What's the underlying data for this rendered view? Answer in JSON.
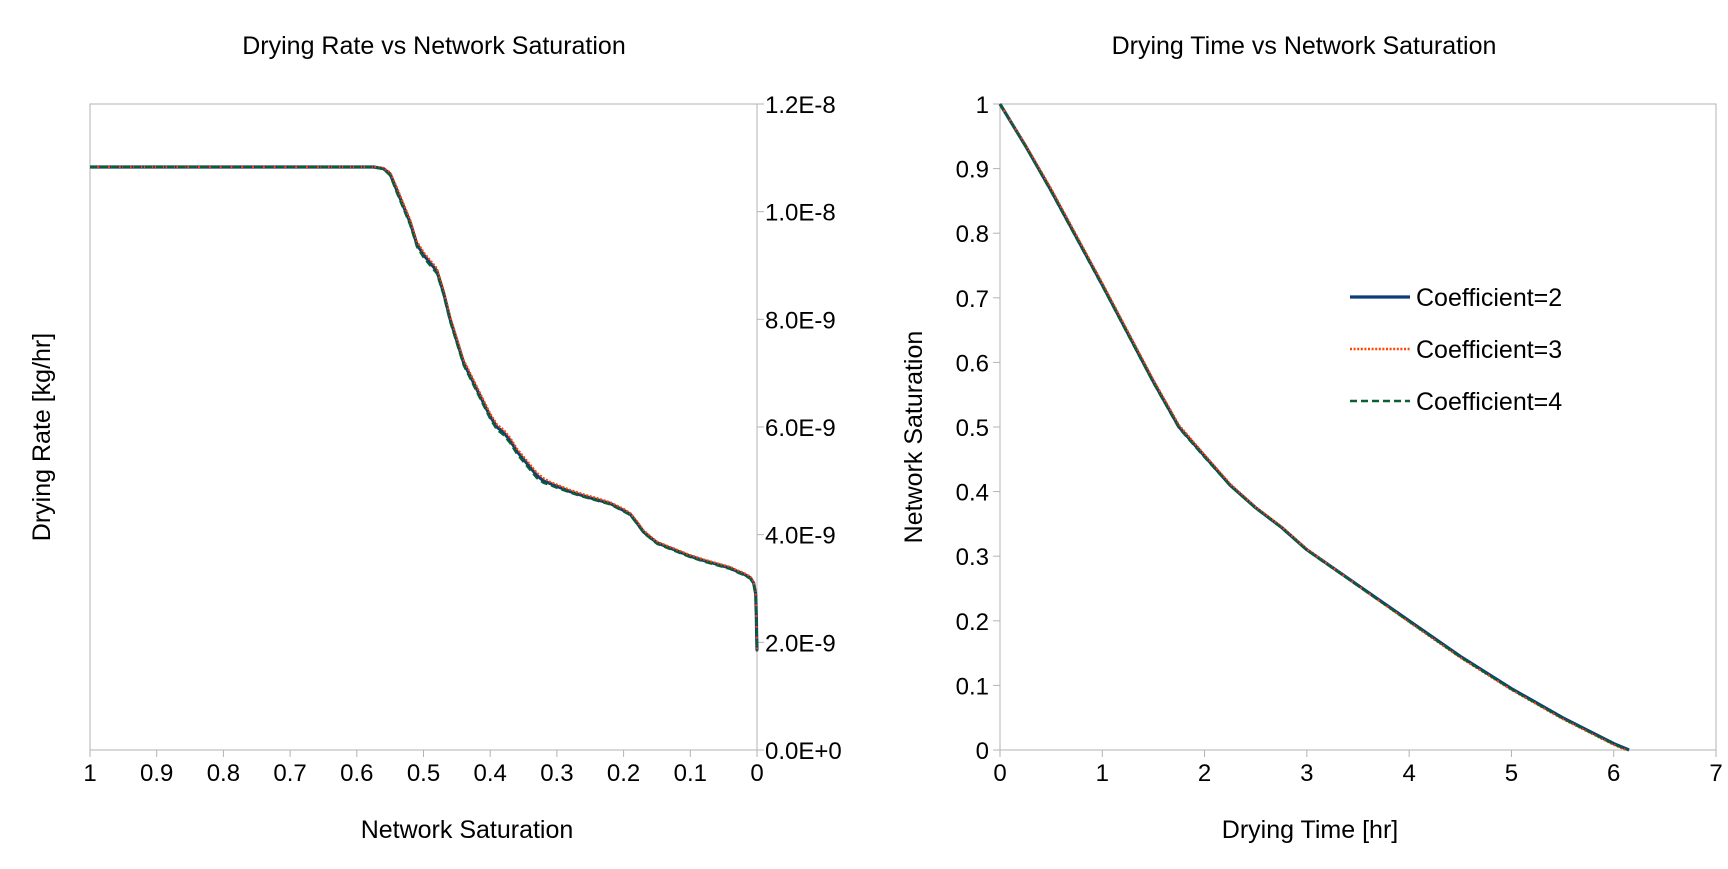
{
  "chart_data": [
    {
      "type": "line",
      "title": "Drying Rate vs Network Saturation",
      "xlabel": "Network Saturation",
      "ylabel": "Drying Rate [kg/hr]",
      "x_reversed": true,
      "xlim": [
        0,
        1
      ],
      "ylim": [
        0,
        1.2e-08
      ],
      "y_axis_side": "right",
      "x_ticks": [
        "1",
        "0.9",
        "0.8",
        "0.7",
        "0.6",
        "0.5",
        "0.4",
        "0.3",
        "0.2",
        "0.1",
        "0"
      ],
      "y_ticks": [
        "0.0E+0",
        "2.0E-9",
        "4.0E-9",
        "6.0E-9",
        "8.0E-9",
        "1.0E-8",
        "1.2E-8"
      ],
      "grid": false,
      "series": [
        {
          "name": "Coefficient=2",
          "color": "#0b3d7a",
          "style": "solid",
          "x": [
            1.0,
            0.8,
            0.6,
            0.575,
            0.56,
            0.55,
            0.54,
            0.53,
            0.52,
            0.51,
            0.5,
            0.49,
            0.48,
            0.47,
            0.46,
            0.45,
            0.44,
            0.43,
            0.42,
            0.41,
            0.4,
            0.39,
            0.38,
            0.37,
            0.36,
            0.35,
            0.34,
            0.33,
            0.32,
            0.31,
            0.3,
            0.28,
            0.26,
            0.24,
            0.22,
            0.2,
            0.19,
            0.18,
            0.17,
            0.16,
            0.15,
            0.14,
            0.12,
            0.1,
            0.08,
            0.06,
            0.04,
            0.03,
            0.02,
            0.01,
            0.005,
            0.002,
            0.001,
            0.0005,
            0.0
          ],
          "y": [
            1.083e-08,
            1.083e-08,
            1.083e-08,
            1.083e-08,
            1.08e-08,
            1.07e-08,
            1.04e-08,
            1.01e-08,
            9.8e-09,
            9.4e-09,
            9.2e-09,
            9.05e-09,
            8.9e-09,
            8.5e-09,
            8e-09,
            7.6e-09,
            7.2e-09,
            6.95e-09,
            6.7e-09,
            6.45e-09,
            6.2e-09,
            6e-09,
            5.9e-09,
            5.75e-09,
            5.55e-09,
            5.4e-09,
            5.25e-09,
            5.1e-09,
            5e-09,
            4.95e-09,
            4.9e-09,
            4.8e-09,
            4.72e-09,
            4.65e-09,
            4.58e-09,
            4.45e-09,
            4.38e-09,
            4.22e-09,
            4.05e-09,
            3.95e-09,
            3.85e-09,
            3.8e-09,
            3.7e-09,
            3.6e-09,
            3.52e-09,
            3.45e-09,
            3.38e-09,
            3.32e-09,
            3.27e-09,
            3.2e-09,
            3.1e-09,
            2.9e-09,
            2.5e-09,
            2.1e-09,
            1.85e-09
          ]
        },
        {
          "name": "Coefficient=3",
          "color": "#ff4500",
          "style": "dotted",
          "x": [
            1.0,
            0.8,
            0.6,
            0.575,
            0.56,
            0.55,
            0.54,
            0.53,
            0.52,
            0.51,
            0.5,
            0.49,
            0.48,
            0.47,
            0.46,
            0.45,
            0.44,
            0.43,
            0.42,
            0.41,
            0.4,
            0.39,
            0.38,
            0.37,
            0.36,
            0.35,
            0.34,
            0.33,
            0.32,
            0.31,
            0.3,
            0.28,
            0.26,
            0.24,
            0.22,
            0.2,
            0.19,
            0.18,
            0.17,
            0.16,
            0.15,
            0.14,
            0.12,
            0.1,
            0.08,
            0.06,
            0.04,
            0.03,
            0.02,
            0.01,
            0.005,
            0.002,
            0.001,
            0.0005,
            0.0
          ],
          "y": [
            1.083e-08,
            1.083e-08,
            1.083e-08,
            1.083e-08,
            1.081e-08,
            1.073e-08,
            1.045e-08,
            1.015e-08,
            9.85e-09,
            9.45e-09,
            9.25e-09,
            9.1e-09,
            8.95e-09,
            8.55e-09,
            8.05e-09,
            7.65e-09,
            7.25e-09,
            7e-09,
            6.75e-09,
            6.5e-09,
            6.25e-09,
            6.05e-09,
            5.95e-09,
            5.8e-09,
            5.6e-09,
            5.45e-09,
            5.3e-09,
            5.15e-09,
            5.05e-09,
            4.98e-09,
            4.93e-09,
            4.83e-09,
            4.75e-09,
            4.68e-09,
            4.6e-09,
            4.48e-09,
            4.4e-09,
            4.25e-09,
            4.08e-09,
            3.97e-09,
            3.87e-09,
            3.82e-09,
            3.72e-09,
            3.62e-09,
            3.54e-09,
            3.47e-09,
            3.4e-09,
            3.34e-09,
            3.29e-09,
            3.22e-09,
            3.12e-09,
            2.92e-09,
            2.52e-09,
            2.12e-09,
            1.87e-09
          ]
        },
        {
          "name": "Coefficient=4",
          "color": "#0a5e32",
          "style": "dashed",
          "x": [
            1.0,
            0.8,
            0.6,
            0.575,
            0.56,
            0.55,
            0.54,
            0.53,
            0.52,
            0.51,
            0.5,
            0.49,
            0.48,
            0.47,
            0.46,
            0.45,
            0.44,
            0.43,
            0.42,
            0.41,
            0.4,
            0.39,
            0.38,
            0.37,
            0.36,
            0.35,
            0.34,
            0.33,
            0.32,
            0.31,
            0.3,
            0.28,
            0.26,
            0.24,
            0.22,
            0.2,
            0.19,
            0.18,
            0.17,
            0.16,
            0.15,
            0.14,
            0.12,
            0.1,
            0.08,
            0.06,
            0.04,
            0.03,
            0.02,
            0.01,
            0.005,
            0.002,
            0.001,
            0.0005,
            0.0
          ],
          "y": [
            1.083e-08,
            1.083e-08,
            1.083e-08,
            1.083e-08,
            1.079e-08,
            1.067e-08,
            1.035e-08,
            1.005e-08,
            9.75e-09,
            9.35e-09,
            9.15e-09,
            9e-09,
            8.85e-09,
            8.45e-09,
            7.95e-09,
            7.55e-09,
            7.15e-09,
            6.9e-09,
            6.65e-09,
            6.4e-09,
            6.15e-09,
            5.95e-09,
            5.85e-09,
            5.7e-09,
            5.5e-09,
            5.35e-09,
            5.2e-09,
            5.05e-09,
            4.96e-09,
            4.92e-09,
            4.87e-09,
            4.78e-09,
            4.7e-09,
            4.63e-09,
            4.56e-09,
            4.43e-09,
            4.36e-09,
            4.2e-09,
            4.03e-09,
            3.93e-09,
            3.83e-09,
            3.78e-09,
            3.68e-09,
            3.58e-09,
            3.5e-09,
            3.43e-09,
            3.36e-09,
            3.3e-09,
            3.25e-09,
            3.18e-09,
            3.08e-09,
            2.88e-09,
            2.48e-09,
            2.08e-09,
            1.83e-09
          ]
        }
      ]
    },
    {
      "type": "line",
      "title": "Drying Time vs Network Saturation",
      "xlabel": "Drying Time [hr]",
      "ylabel": "Network Saturation",
      "xlim": [
        0,
        7
      ],
      "ylim": [
        0,
        1
      ],
      "x_ticks": [
        "0",
        "1",
        "2",
        "3",
        "4",
        "5",
        "6",
        "7"
      ],
      "y_ticks": [
        "0",
        "0.1",
        "0.2",
        "0.3",
        "0.4",
        "0.5",
        "0.6",
        "0.7",
        "0.8",
        "0.9",
        "1"
      ],
      "grid": false,
      "legend": "center-right",
      "series": [
        {
          "name": "Coefficient=2",
          "color": "#0b3d7a",
          "style": "solid",
          "x": [
            0,
            0.25,
            0.5,
            0.75,
            1.0,
            1.25,
            1.5,
            1.75,
            2.0,
            2.25,
            2.5,
            2.75,
            3.0,
            3.5,
            4.0,
            4.5,
            5.0,
            5.5,
            6.0,
            6.15
          ],
          "y": [
            1.0,
            0.935,
            0.866,
            0.793,
            0.72,
            0.645,
            0.57,
            0.5,
            0.455,
            0.41,
            0.375,
            0.345,
            0.31,
            0.255,
            0.2,
            0.145,
            0.095,
            0.05,
            0.01,
            0.0
          ]
        },
        {
          "name": "Coefficient=3",
          "color": "#ff4500",
          "style": "dotted",
          "x": [
            0,
            0.25,
            0.5,
            0.75,
            1.0,
            1.25,
            1.5,
            1.75,
            2.0,
            2.25,
            2.5,
            2.75,
            3.0,
            3.5,
            4.0,
            4.5,
            5.0,
            5.5,
            6.0,
            6.12
          ],
          "y": [
            1.0,
            0.937,
            0.869,
            0.796,
            0.723,
            0.648,
            0.573,
            0.503,
            0.457,
            0.412,
            0.376,
            0.346,
            0.311,
            0.254,
            0.198,
            0.143,
            0.093,
            0.048,
            0.008,
            0.0
          ]
        },
        {
          "name": "Coefficient=4",
          "color": "#0a5e32",
          "style": "dashed",
          "x": [
            0,
            0.25,
            0.5,
            0.75,
            1.0,
            1.25,
            1.5,
            1.75,
            2.0,
            2.25,
            2.5,
            2.75,
            3.0,
            3.5,
            4.0,
            4.5,
            5.0,
            5.5,
            6.0,
            6.14
          ],
          "y": [
            1.0,
            0.934,
            0.864,
            0.791,
            0.718,
            0.643,
            0.568,
            0.498,
            0.453,
            0.409,
            0.374,
            0.344,
            0.309,
            0.254,
            0.199,
            0.144,
            0.094,
            0.049,
            0.009,
            0.0
          ]
        }
      ]
    }
  ]
}
